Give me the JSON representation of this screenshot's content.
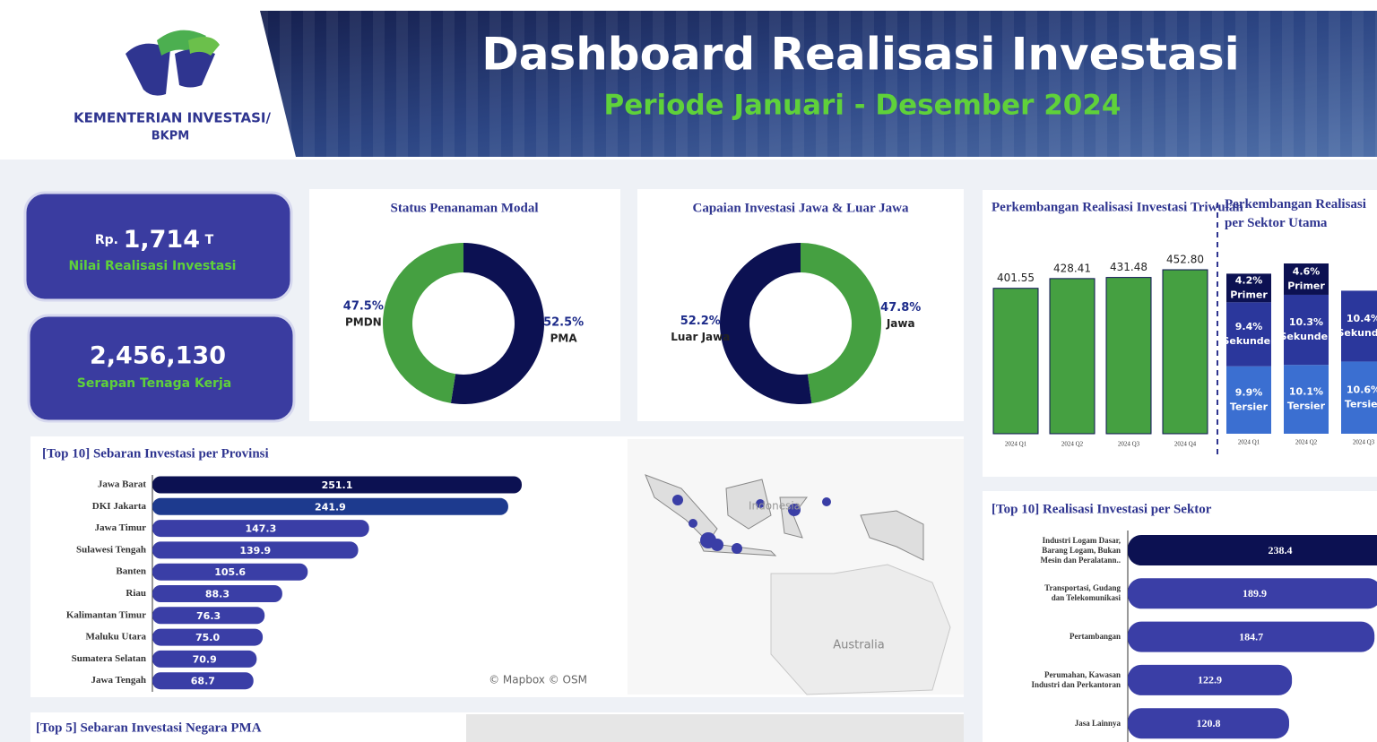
{
  "header": {
    "logo_line1": "KEMENTERIAN INVESTASI/",
    "logo_line2": "BKPM",
    "title": "Dashboard Realisasi Investasi",
    "subtitle": "Periode Januari - Desember 2024"
  },
  "kpis": [
    {
      "prefix": "Rp.",
      "value": "1,714",
      "suffix": "T",
      "label": "Nilai Realisasi Investasi"
    },
    {
      "value": "2,456,130",
      "label": "Serapan Tenaga Kerja"
    }
  ],
  "chart_data": [
    {
      "type": "donut",
      "title": "Status Penanaman Modal",
      "categories": [
        "PMA",
        "PMDN"
      ],
      "values": [
        52.5,
        47.5
      ],
      "value_labels": [
        "52.5%",
        "47.5%"
      ],
      "colors": [
        "#0c1152",
        "#45a041"
      ]
    },
    {
      "type": "donut",
      "title": "Capaian Investasi Jawa & Luar Jawa",
      "categories": [
        "Jawa",
        "Luar Jawa"
      ],
      "values": [
        47.8,
        52.2
      ],
      "value_labels": [
        "47.8%",
        "52.2%"
      ],
      "colors": [
        "#45a041",
        "#0c1152"
      ]
    },
    {
      "type": "bar",
      "title": "Perkembangan Realisasi Investasi Triwulan",
      "categories": [
        "2024 Q1",
        "2024 Q2",
        "2024 Q3",
        "2024 Q4"
      ],
      "values": [
        401.55,
        428.41,
        431.48,
        452.8
      ],
      "value_labels": [
        "401.55",
        "428.41",
        "431.48",
        "452.80"
      ],
      "color": "#45a041"
    },
    {
      "type": "stacked",
      "title": "Perkembangan Realisasi per Sektor Utama",
      "categories": [
        "2024 Q1",
        "2024 Q2",
        "2024 Q3"
      ],
      "series": [
        {
          "name": "Tersier",
          "color": "#3b6fd1",
          "values": [
            9.9,
            10.1,
            10.6
          ],
          "value_labels": [
            "9.9%",
            "10.1%",
            "10.6%"
          ]
        },
        {
          "name": "Sekunder",
          "color": "#2b379c",
          "values": [
            9.4,
            10.3,
            10.4
          ],
          "value_labels": [
            "9.4%",
            "10.3%",
            "10.4%"
          ]
        },
        {
          "name": "Primer",
          "color": "#0c1152",
          "values": [
            4.2,
            4.6,
            null
          ],
          "value_labels": [
            "4.2%",
            "4.6%",
            null
          ]
        }
      ]
    },
    {
      "type": "hbar",
      "title": "[Top 10] Sebaran Investasi per Provinsi",
      "categories": [
        "Jawa Barat",
        "DKI Jakarta",
        "Jawa Timur",
        "Sulawesi Tengah",
        "Banten",
        "Riau",
        "Kalimantan Timur",
        "Maluku Utara",
        "Sumatera Selatan",
        "Jawa Tengah"
      ],
      "values": [
        251.1,
        241.9,
        147.3,
        139.9,
        105.6,
        88.3,
        76.3,
        75.0,
        70.9,
        68.7
      ],
      "value_labels": [
        "251.1",
        "241.9",
        "147.3",
        "139.9",
        "105.6",
        "88.3",
        "76.3",
        "75.0",
        "70.9",
        "68.7"
      ],
      "colors": [
        "#0c1152",
        "#1d3a8e",
        "#3a3ea6",
        "#3a3ea6",
        "#3a3ea6",
        "#3a3ea6",
        "#3a3ea6",
        "#3a3ea6",
        "#3a3ea6",
        "#3a3ea6"
      ]
    },
    {
      "type": "hbar-sector",
      "title": "[Top 10] Realisasi Investasi per Sektor",
      "categories": [
        "Industri Logam Dasar, Barang Logam, Bukan Mesin dan Peralatann..",
        "Transportasi, Gudang dan Telekomunikasi",
        "Pertambangan",
        "Perumahan, Kawasan Industri dan Perkantoran",
        "Jasa Lainnya"
      ],
      "values": [
        238.4,
        189.9,
        184.7,
        122.9,
        120.8
      ],
      "colors": [
        "#0c1152",
        "#3a3ea6",
        "#3a3ea6",
        "#3a3ea6",
        "#3a3ea6"
      ]
    }
  ],
  "map": {
    "labels": [
      "Indonesia",
      "Australia"
    ],
    "attribution": "© Mapbox © OSM"
  },
  "bottom_panel": {
    "title": "[Top 5] Sebaran Investasi Negara PMA"
  }
}
